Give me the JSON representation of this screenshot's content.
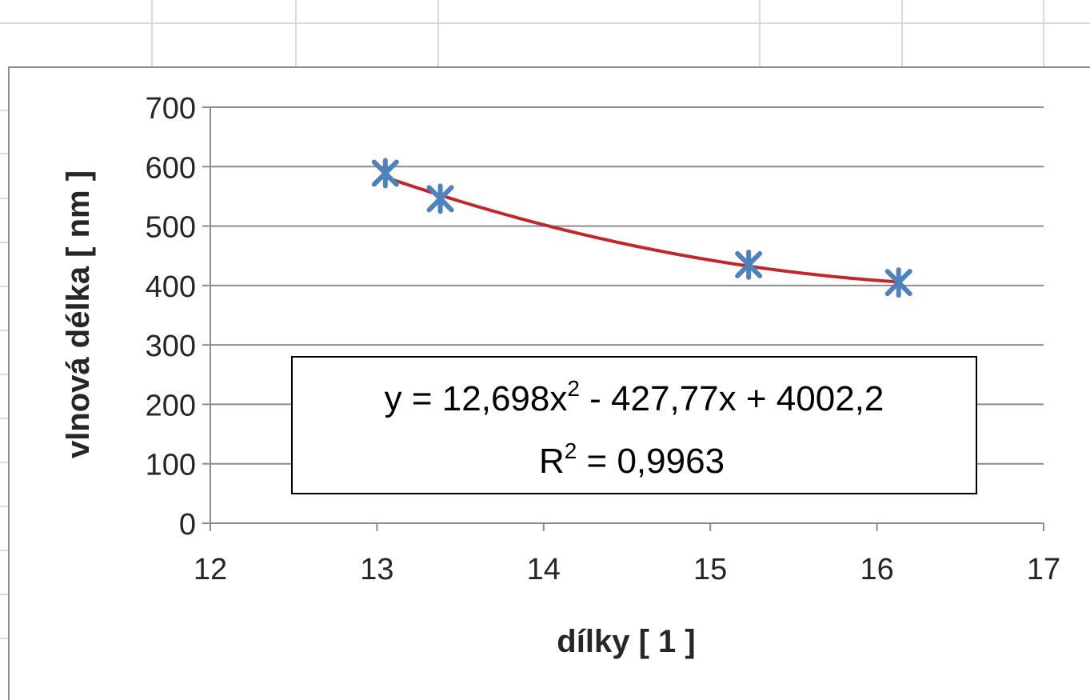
{
  "chart_data": {
    "type": "scatter",
    "title": "",
    "xlabel": "dílky [ 1 ]",
    "ylabel": "vlnová délka [ nm ]",
    "xlim": [
      12,
      17
    ],
    "ylim": [
      0,
      700
    ],
    "xticks": [
      12,
      13,
      14,
      15,
      16,
      17
    ],
    "yticks": [
      0,
      100,
      200,
      300,
      400,
      500,
      600,
      700
    ],
    "grid": "horizontal",
    "legend": "none",
    "series": [
      {
        "marker": "asterisk",
        "color": "#4f81bd",
        "points": [
          {
            "x": 13.05,
            "y": 589
          },
          {
            "x": 13.38,
            "y": 546
          },
          {
            "x": 15.23,
            "y": 435
          },
          {
            "x": 16.13,
            "y": 405
          }
        ]
      }
    ],
    "trendline": {
      "type": "polynomial",
      "order": 2,
      "color": "#c0272d",
      "coefficients": [
        12.698,
        -427.77,
        4002.2
      ],
      "x_range": [
        13.05,
        16.13
      ],
      "equation_label": {
        "prefix": "y = 12,698x",
        "exponent": "2",
        "suffix": " - 427,77x + 4002,2"
      },
      "r2_label": {
        "prefix": "R",
        "exponent": "2",
        "suffix": " = 0,9963"
      }
    }
  }
}
